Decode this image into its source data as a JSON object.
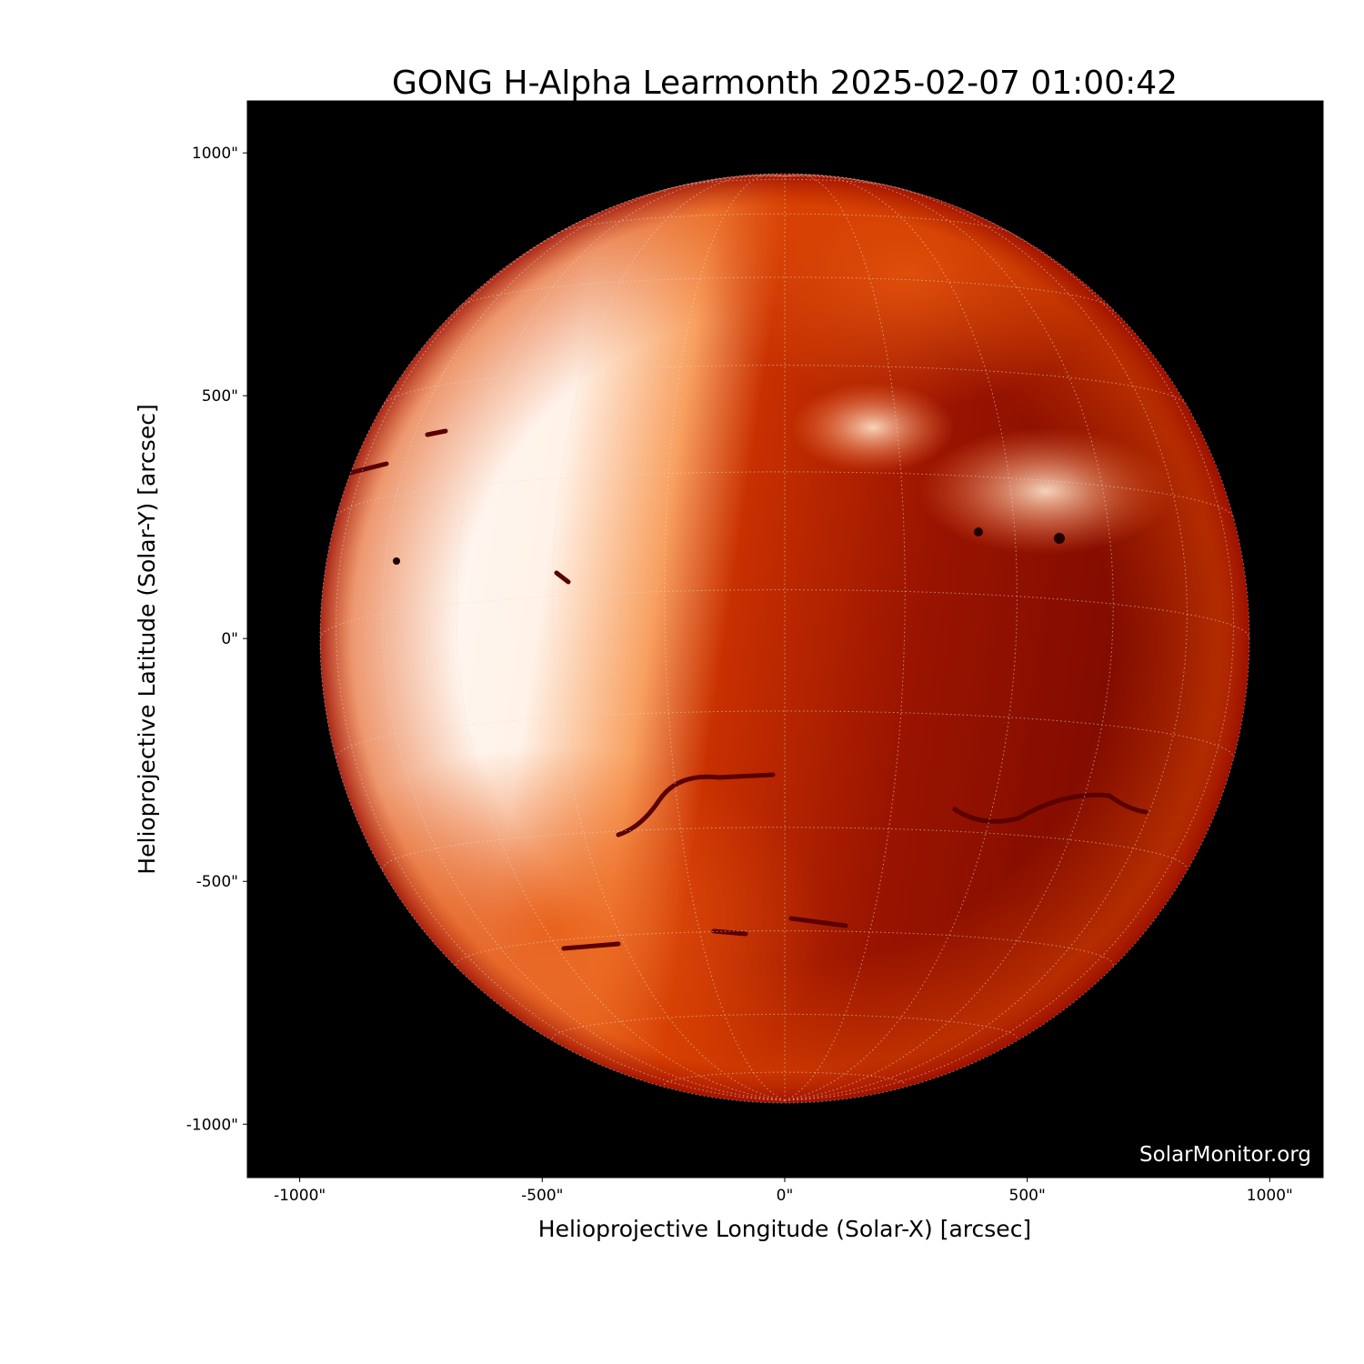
{
  "chart_data": {
    "type": "heatmap",
    "title": "GONG H-Alpha Learmonth 2025-02-07 01:00:42",
    "xlabel": "Helioprojective Longitude (Solar-X) [arcsec]",
    "ylabel": "Helioprojective Latitude (Solar-Y) [arcsec]",
    "xlim": [
      -1108,
      1110
    ],
    "ylim": [
      -1110,
      1107
    ],
    "xticks": [
      -1000,
      -500,
      0,
      500,
      1000
    ],
    "yticks": [
      -1000,
      -500,
      0,
      500,
      1000
    ],
    "xtick_labels": [
      "-1000\"",
      "-500\"",
      "0\"",
      "500\"",
      "1000\""
    ],
    "ytick_labels": [
      "-1000\"",
      "-500\"",
      "0\"",
      "500\"",
      "1000\""
    ],
    "solar_radius_arcsec": 957,
    "grid": "heliographic dotted",
    "colormap": "gong h-alpha (black-red-orange-white)",
    "watermark": "SolarMonitor.org",
    "colors": {
      "background": "#000000",
      "bright": "#ffffff",
      "mid": "#f06010",
      "dark": "#7a0800"
    }
  }
}
